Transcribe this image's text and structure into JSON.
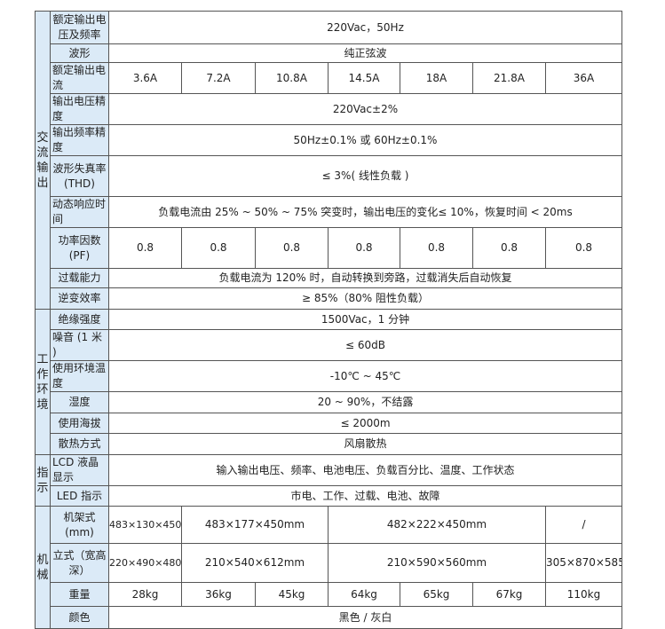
{
  "categories": [
    {
      "label": "交流输出",
      "rows": 10
    },
    {
      "label": "工作环境",
      "rows": 6
    },
    {
      "label": "指示",
      "rows": 2
    },
    {
      "label": "机械",
      "rows": 4
    }
  ],
  "rows": [
    {
      "label": "额定输出电压及频率",
      "cells": [
        {
          "text": "220Vac，50Hz",
          "span": 7
        }
      ]
    },
    {
      "label": "波形",
      "cells": [
        {
          "text": "纯正弦波",
          "span": 7
        }
      ]
    },
    {
      "label": "额定输出电流",
      "cells": [
        {
          "text": "3.6A"
        },
        {
          "text": "7.2A"
        },
        {
          "text": "10.8A"
        },
        {
          "text": "14.5A"
        },
        {
          "text": "18A"
        },
        {
          "text": "21.8A"
        },
        {
          "text": "36A"
        }
      ]
    },
    {
      "label": "输出电压精度",
      "cells": [
        {
          "text": "220Vac±2%",
          "span": 7
        }
      ]
    },
    {
      "label": "输出频率精度",
      "cells": [
        {
          "text": "50Hz±0.1% 或 60Hz±0.1%",
          "span": 7
        }
      ]
    },
    {
      "label": "波形失真率(THD)",
      "cells": [
        {
          "text": "≤ 3%( 线性负载 )",
          "span": 7
        }
      ]
    },
    {
      "label": "动态响应时间",
      "cells": [
        {
          "text": "负载电流由 25% ~ 50% ~ 75% 突变时，输出电压的变化≤ 10%，恢复时间 < 20ms",
          "span": 7
        }
      ]
    },
    {
      "label": "功率因数(PF)",
      "cells": [
        {
          "text": "0.8"
        },
        {
          "text": "0.8"
        },
        {
          "text": "0.8"
        },
        {
          "text": "0.8"
        },
        {
          "text": "0.8"
        },
        {
          "text": "0.8"
        },
        {
          "text": "0.8"
        }
      ]
    },
    {
      "label": "过载能力",
      "cells": [
        {
          "text": "负载电流为 120% 时，自动转换到旁路，过载消失后自动恢复",
          "span": 7
        }
      ]
    },
    {
      "label": "逆变效率",
      "cells": [
        {
          "text": "≥ 85%（80% 阻性负载）",
          "span": 7
        }
      ]
    },
    {
      "label": "绝缘强度",
      "cells": [
        {
          "text": "1500Vac，1 分钟",
          "span": 7
        }
      ]
    },
    {
      "label": "噪音 (1 米 )",
      "cells": [
        {
          "text": "≤ 60dB",
          "span": 7
        }
      ]
    },
    {
      "label": "使用环境温度",
      "cells": [
        {
          "text": "-10℃ ~ 45℃",
          "span": 7
        }
      ]
    },
    {
      "label": "湿度",
      "cells": [
        {
          "text": "20 ~ 90%，不结露",
          "span": 7
        }
      ]
    },
    {
      "label": "使用海拔",
      "cells": [
        {
          "text": "≤ 2000m",
          "span": 7
        }
      ]
    },
    {
      "label": "散热方式",
      "cells": [
        {
          "text": "风扇散热",
          "span": 7
        }
      ]
    },
    {
      "label": "LCD 液晶显示",
      "cells": [
        {
          "text": "输入输出电压、频率、电池电压、负载百分比、温度、工作状态",
          "span": 7
        }
      ]
    },
    {
      "label": "LED 指示",
      "cells": [
        {
          "text": "市电、工作、过载、电池、故障",
          "span": 7
        }
      ]
    },
    {
      "label": "机架式(mm)",
      "cells": [
        {
          "text": "483×130×450",
          "small": true
        },
        {
          "text": "483×177×450mm",
          "span": 2
        },
        {
          "text": "482×222×450mm",
          "span": 3
        },
        {
          "text": "/"
        }
      ]
    },
    {
      "label": "立式（宽高深）",
      "cells": [
        {
          "text": "220×490×480",
          "small": true
        },
        {
          "text": "210×540×612mm",
          "span": 2
        },
        {
          "text": "210×590×560mm",
          "span": 3
        },
        {
          "text": "305×870×585"
        }
      ]
    },
    {
      "label": "重量",
      "cells": [
        {
          "text": "28kg"
        },
        {
          "text": "36kg"
        },
        {
          "text": "45kg"
        },
        {
          "text": "64kg"
        },
        {
          "text": "65kg"
        },
        {
          "text": "67kg"
        },
        {
          "text": "110kg"
        }
      ]
    },
    {
      "label": "颜色",
      "cells": [
        {
          "text": "黑色 / 灰白",
          "span": 7
        }
      ]
    }
  ],
  "colors": {
    "label_bg": "#dbeaf7",
    "border": "#555555"
  }
}
